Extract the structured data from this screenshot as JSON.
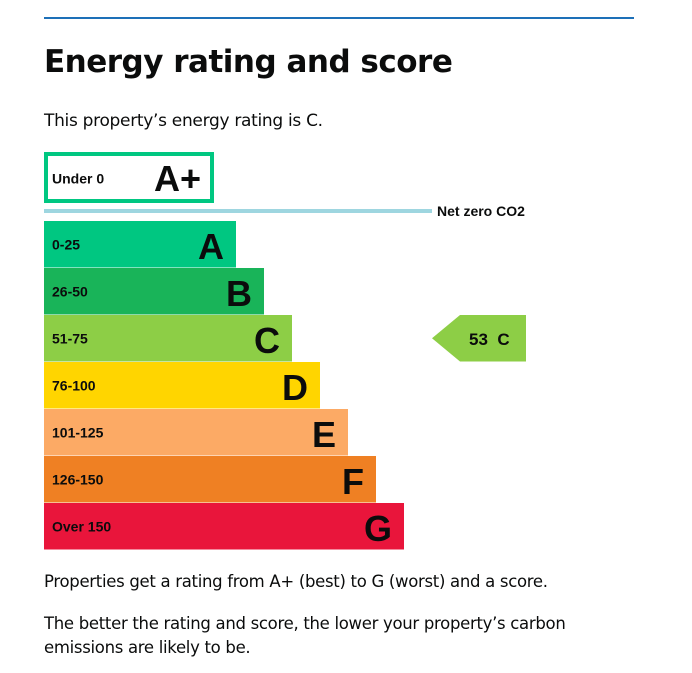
{
  "heading": "Energy rating and score",
  "intro": "This property’s energy rating is C.",
  "footer": {
    "p1": "Properties get a rating from A+ (best) to G (worst) and a score.",
    "p2": "The better the rating and score, the lower your property’s carbon emissions are likely to be."
  },
  "chart_data": {
    "type": "bar",
    "title": "",
    "xlabel": "",
    "ylabel": "",
    "bands": [
      {
        "range": "Under 0",
        "letter": "A+",
        "color": "#00c781",
        "outlined": true
      },
      {
        "range": "0-25",
        "letter": "A",
        "color": "#00c781"
      },
      {
        "range": "26-50",
        "letter": "B",
        "color": "#19b459"
      },
      {
        "range": "51-75",
        "letter": "C",
        "color": "#8dce46"
      },
      {
        "range": "76-100",
        "letter": "D",
        "color": "#ffd500"
      },
      {
        "range": "101-125",
        "letter": "E",
        "color": "#fcaa65"
      },
      {
        "range": "126-150",
        "letter": "F",
        "color": "#ef8023"
      },
      {
        "range": "Over 150",
        "letter": "G",
        "color": "#e9153b"
      }
    ],
    "net_zero_label": "Net zero CO2",
    "net_zero_line_color": "#9ed6e0",
    "current": {
      "score": 53,
      "letter": "C",
      "label": "53  C",
      "color": "#8dce46"
    }
  }
}
